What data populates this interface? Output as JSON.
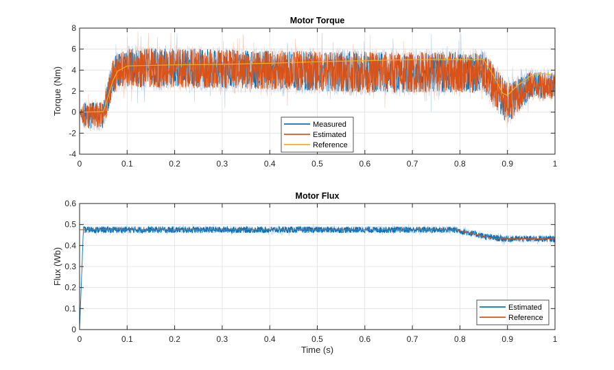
{
  "chart_data": [
    {
      "type": "line",
      "title": "Motor Torque",
      "xlabel": "",
      "ylabel": "Torque (Nm)",
      "xlim": [
        0,
        1
      ],
      "ylim": [
        -4,
        8
      ],
      "xticks": [
        "0",
        "0.1",
        "0.2",
        "0.3",
        "0.4",
        "0.5",
        "0.6",
        "0.7",
        "0.8",
        "0.9",
        "1"
      ],
      "yticks": [
        "-4",
        "-2",
        "0",
        "2",
        "4",
        "6",
        "8"
      ],
      "grid": true,
      "legend_position": "bottom-center",
      "series": [
        {
          "name": "Measured",
          "color": "#0072BD",
          "x": [
            0,
            0.01,
            0.05,
            0.07,
            0.1,
            0.2,
            0.4,
            0.6,
            0.85,
            0.9,
            0.95,
            1.0
          ],
          "y_mean": [
            0,
            -0.3,
            -0.3,
            3.5,
            4.2,
            4.2,
            4.0,
            3.8,
            3.8,
            0.8,
            2.6,
            2.5
          ],
          "y_band": [
            0,
            1.5,
            1.5,
            2.0,
            2.2,
            2.2,
            2.2,
            2.3,
            2.3,
            2.3,
            1.5,
            1.5
          ]
        },
        {
          "name": "Estimated",
          "color": "#D95319",
          "x": [
            0,
            0.01,
            0.05,
            0.07,
            0.1,
            0.2,
            0.4,
            0.6,
            0.85,
            0.9,
            0.95,
            1.0
          ],
          "y_mean": [
            0,
            -0.3,
            -0.3,
            3.5,
            4.2,
            4.2,
            4.0,
            3.8,
            3.8,
            0.8,
            2.6,
            2.5
          ],
          "y_band": [
            0,
            1.5,
            1.5,
            2.0,
            2.2,
            2.2,
            2.2,
            2.3,
            2.3,
            2.3,
            1.5,
            1.5
          ]
        },
        {
          "name": "Reference",
          "color": "#EDB120",
          "x": [
            0,
            0.05,
            0.06,
            0.07,
            0.08,
            0.1,
            0.2,
            0.3,
            0.4,
            0.5,
            0.6,
            0.7,
            0.85,
            0.87,
            0.89,
            0.9,
            0.92,
            0.95,
            0.97,
            1.0
          ],
          "y": [
            0,
            0.05,
            1.5,
            3.0,
            3.9,
            4.4,
            4.5,
            4.55,
            4.65,
            4.8,
            4.9,
            5.0,
            5.0,
            3.5,
            1.8,
            1.6,
            2.5,
            3.5,
            3.7,
            3.5
          ]
        }
      ]
    },
    {
      "type": "line",
      "title": "Motor Flux",
      "xlabel": "Time (s)",
      "ylabel": "Flux (Wb)",
      "xlim": [
        0,
        1
      ],
      "ylim": [
        0,
        0.6
      ],
      "xticks": [
        "0",
        "0.1",
        "0.2",
        "0.3",
        "0.4",
        "0.5",
        "0.6",
        "0.7",
        "0.8",
        "0.9",
        "1"
      ],
      "yticks": [
        "0",
        "0.1",
        "0.2",
        "0.3",
        "0.4",
        "0.5",
        "0.6"
      ],
      "grid": true,
      "legend_position": "bottom-right",
      "series": [
        {
          "name": "Estimated",
          "color": "#0072BD",
          "x": [
            0,
            0.008,
            0.79,
            0.86,
            0.89,
            0.9,
            1.0
          ],
          "y_mean": [
            0,
            0.475,
            0.475,
            0.44,
            0.432,
            0.432,
            0.432
          ],
          "y_band": [
            0,
            0.018,
            0.018,
            0.018,
            0.018,
            0.018,
            0.018
          ]
        },
        {
          "name": "Reference",
          "color": "#D95319",
          "x": [
            0,
            0.79,
            0.87,
            0.89,
            0.9,
            1.0
          ],
          "y": [
            0.475,
            0.475,
            0.435,
            0.433,
            0.432,
            0.432
          ]
        }
      ]
    }
  ]
}
